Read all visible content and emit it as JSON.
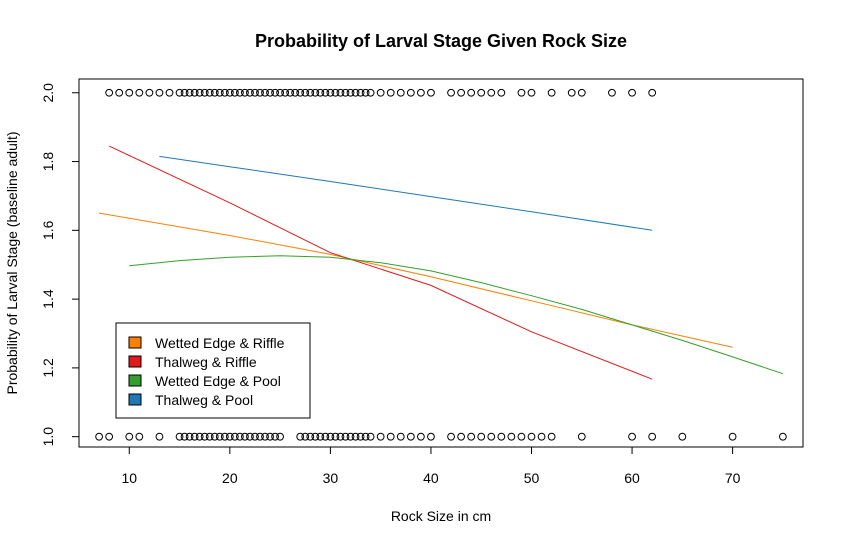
{
  "chart_data": {
    "type": "scatter",
    "title": "Probability of Larval Stage Given Rock Size",
    "xlabel": "Rock Size in cm",
    "ylabel": "Probability of Larval Stage (baseline adult)",
    "xlim": [
      5,
      77
    ],
    "ylim": [
      0.97,
      2.04
    ],
    "xticks": [
      "10",
      "20",
      "30",
      "40",
      "50",
      "60",
      "70"
    ],
    "yticks": [
      "1.0",
      "1.2",
      "1.4",
      "1.6",
      "1.8",
      "2.0"
    ],
    "legend_position": "bottom-left",
    "points_y2": [
      8,
      9,
      10,
      11,
      12,
      13,
      14,
      15,
      15.5,
      16,
      16.5,
      17,
      17.5,
      18,
      18.5,
      19,
      19.5,
      20,
      20.5,
      21,
      21.5,
      22,
      22.5,
      23,
      23.5,
      24,
      24.5,
      25,
      25.5,
      26,
      26.5,
      27,
      27.5,
      28,
      28.5,
      29,
      29.5,
      30,
      30.5,
      31,
      31.5,
      32,
      32.5,
      33,
      33.5,
      34,
      35,
      36,
      37,
      38,
      39,
      40,
      42,
      43,
      44,
      45,
      46,
      47,
      49,
      50,
      52,
      54,
      55,
      58,
      60,
      62
    ],
    "points_y1": [
      7,
      8,
      10,
      11,
      13,
      15,
      15.5,
      16,
      16.5,
      17,
      17.5,
      18,
      18.5,
      19,
      19.5,
      20,
      20.5,
      21,
      21.5,
      22,
      22.5,
      23,
      23.5,
      24,
      24.5,
      25,
      27,
      27.5,
      28,
      28.5,
      29,
      29.5,
      30,
      30.5,
      31,
      31.5,
      32,
      32.5,
      33,
      33.5,
      34,
      35,
      36,
      37,
      38,
      39,
      40,
      42,
      43,
      44,
      45,
      46,
      47,
      48,
      49,
      50,
      51,
      52,
      55,
      60,
      62,
      65,
      70,
      75
    ],
    "series": [
      {
        "name": "Wetted Edge & Riffle",
        "color": "#ff7f00",
        "x": [
          7,
          20,
          30,
          40,
          50,
          60,
          70
        ],
        "y": [
          1.65,
          1.585,
          1.53,
          1.465,
          1.395,
          1.325,
          1.26
        ]
      },
      {
        "name": "Thalweg & Riffle",
        "color": "#e31a1c",
        "x": [
          8,
          20,
          30,
          40,
          50,
          62
        ],
        "y": [
          1.845,
          1.68,
          1.535,
          1.44,
          1.305,
          1.167
        ]
      },
      {
        "name": "Wetted Edge & Pool",
        "color": "#33a02c",
        "x": [
          10,
          15,
          20,
          25,
          30,
          35,
          40,
          45,
          50,
          55,
          60,
          65,
          70,
          75
        ],
        "y": [
          1.497,
          1.512,
          1.522,
          1.526,
          1.522,
          1.506,
          1.482,
          1.448,
          1.41,
          1.37,
          1.325,
          1.28,
          1.232,
          1.183
        ]
      },
      {
        "name": "Thalweg & Pool",
        "color": "#1f78b4",
        "x": [
          13,
          20,
          30,
          40,
          50,
          62
        ],
        "y": [
          1.815,
          1.785,
          1.742,
          1.698,
          1.654,
          1.6
        ]
      }
    ]
  }
}
